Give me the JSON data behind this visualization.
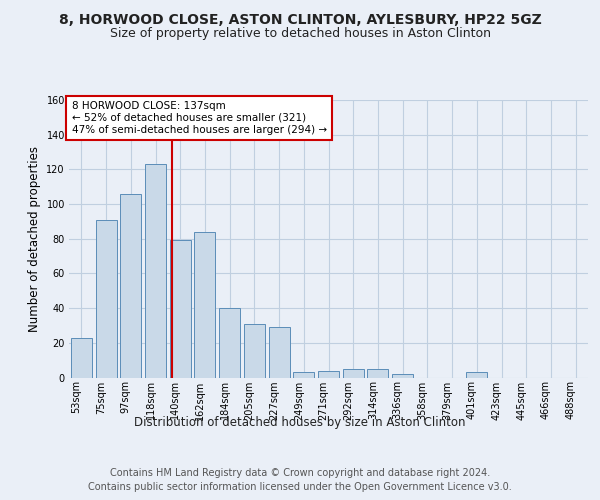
{
  "title_line1": "8, HORWOOD CLOSE, ASTON CLINTON, AYLESBURY, HP22 5GZ",
  "title_line2": "Size of property relative to detached houses in Aston Clinton",
  "xlabel": "Distribution of detached houses by size in Aston Clinton",
  "ylabel": "Number of detached properties",
  "bar_labels": [
    "53sqm",
    "75sqm",
    "97sqm",
    "118sqm",
    "140sqm",
    "162sqm",
    "184sqm",
    "205sqm",
    "227sqm",
    "249sqm",
    "271sqm",
    "292sqm",
    "314sqm",
    "336sqm",
    "358sqm",
    "379sqm",
    "401sqm",
    "423sqm",
    "445sqm",
    "466sqm",
    "488sqm"
  ],
  "bar_values": [
    23,
    91,
    106,
    123,
    79,
    84,
    40,
    31,
    29,
    3,
    4,
    5,
    5,
    2,
    0,
    0,
    3,
    0,
    0,
    0,
    0
  ],
  "bar_color": "#c9d9e8",
  "bar_edge_color": "#5b8db8",
  "reference_line_color": "#cc0000",
  "reference_line_x": 3.68,
  "annotation_box_text": "8 HORWOOD CLOSE: 137sqm\n← 52% of detached houses are smaller (321)\n47% of semi-detached houses are larger (294) →",
  "annotation_box_color": "#cc0000",
  "annotation_box_fill": "#ffffff",
  "ylim": [
    0,
    160
  ],
  "yticks": [
    0,
    20,
    40,
    60,
    80,
    100,
    120,
    140,
    160
  ],
  "grid_color": "#c0cfe0",
  "footer_line1": "Contains HM Land Registry data © Crown copyright and database right 2024.",
  "footer_line2": "Contains public sector information licensed under the Open Government Licence v3.0.",
  "title_fontsize": 10,
  "subtitle_fontsize": 9,
  "axis_label_fontsize": 8.5,
  "tick_fontsize": 7,
  "annotation_fontsize": 7.5,
  "footer_fontsize": 7,
  "background_color": "#eaeff7"
}
